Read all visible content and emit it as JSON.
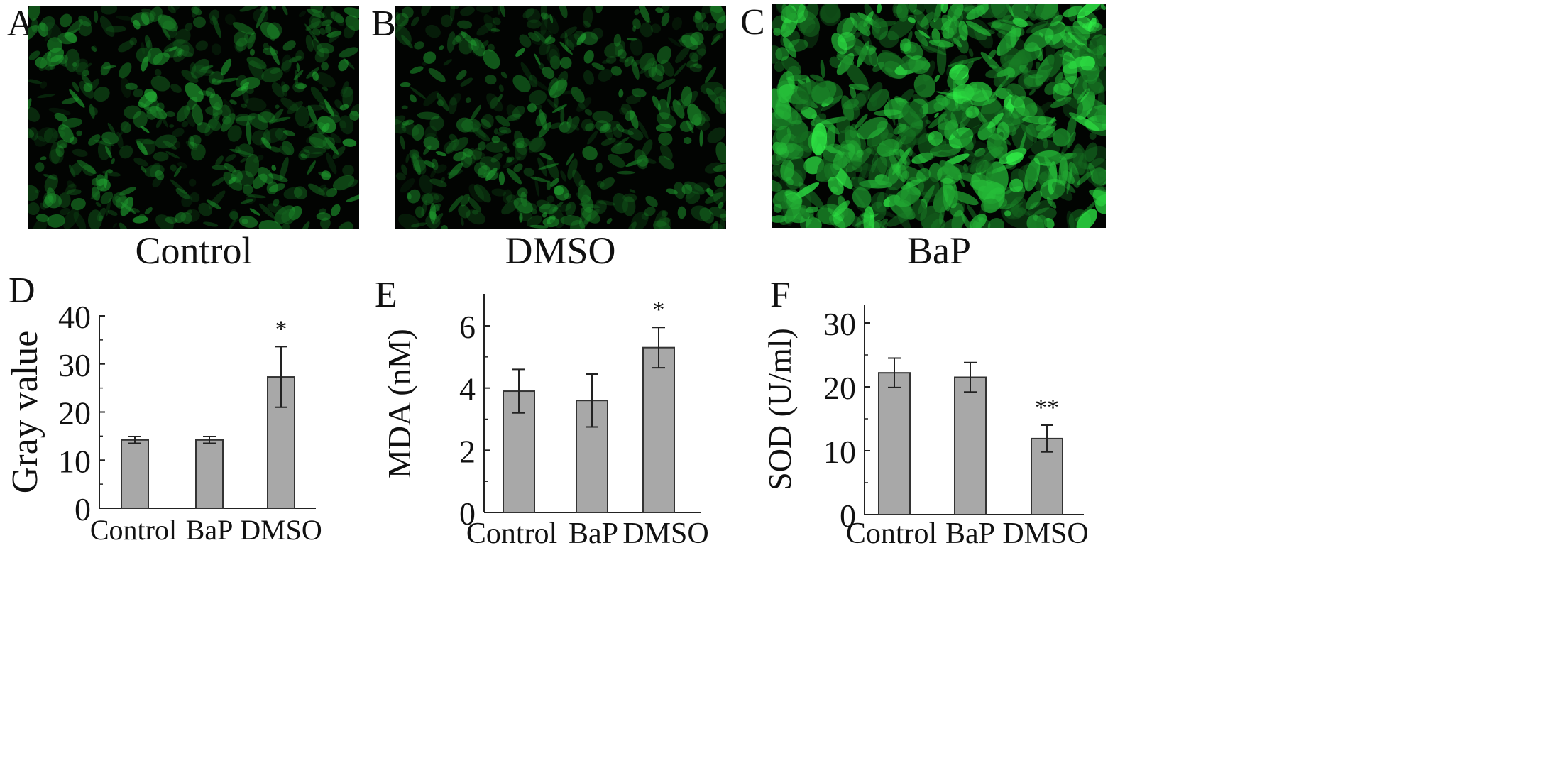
{
  "panels": {
    "a": {
      "letter": "A",
      "caption": "Control",
      "intensity": 0.5
    },
    "b": {
      "letter": "B",
      "caption": "DMSO",
      "intensity": 0.45
    },
    "c": {
      "letter": "C",
      "caption": "BaP",
      "intensity": 1.0
    },
    "d": {
      "letter": "D"
    },
    "e": {
      "letter": "E"
    },
    "f": {
      "letter": "F"
    }
  },
  "colors": {
    "bar_fill": "#a8a8a8",
    "bar_stroke": "#333333",
    "fluorescence": "#2fbf4a",
    "micro_bg": "#020402"
  },
  "chart_data": [
    {
      "type": "bar",
      "categories": [
        "Control",
        "BaP",
        "DMSO"
      ],
      "values": [
        14.2,
        14.2,
        27.3
      ],
      "errors": [
        0.7,
        0.7,
        6.3
      ],
      "annotations": [
        "",
        "",
        "*"
      ],
      "ylabel": "Gray value",
      "ylim": [
        0,
        40
      ],
      "yticks": [
        0,
        10,
        20,
        30,
        40
      ],
      "grid": false
    },
    {
      "type": "bar",
      "categories": [
        "Control",
        "BaP",
        "DMSO"
      ],
      "values": [
        3.9,
        3.6,
        5.3
      ],
      "errors": [
        0.7,
        0.85,
        0.65
      ],
      "annotations": [
        "",
        "",
        "*"
      ],
      "ylabel": "MDA (nM)",
      "ylim": [
        0,
        7
      ],
      "yticks": [
        0,
        2,
        4,
        6
      ],
      "grid": false
    },
    {
      "type": "bar",
      "categories": [
        "Control",
        "BaP",
        "DMSO"
      ],
      "values": [
        22.2,
        21.5,
        11.9
      ],
      "errors": [
        2.3,
        2.3,
        2.1
      ],
      "annotations": [
        "",
        "",
        "**"
      ],
      "ylabel": "SOD (U/ml)",
      "ylim": [
        0,
        33
      ],
      "yticks": [
        0,
        10,
        20,
        30
      ],
      "grid": false
    }
  ]
}
